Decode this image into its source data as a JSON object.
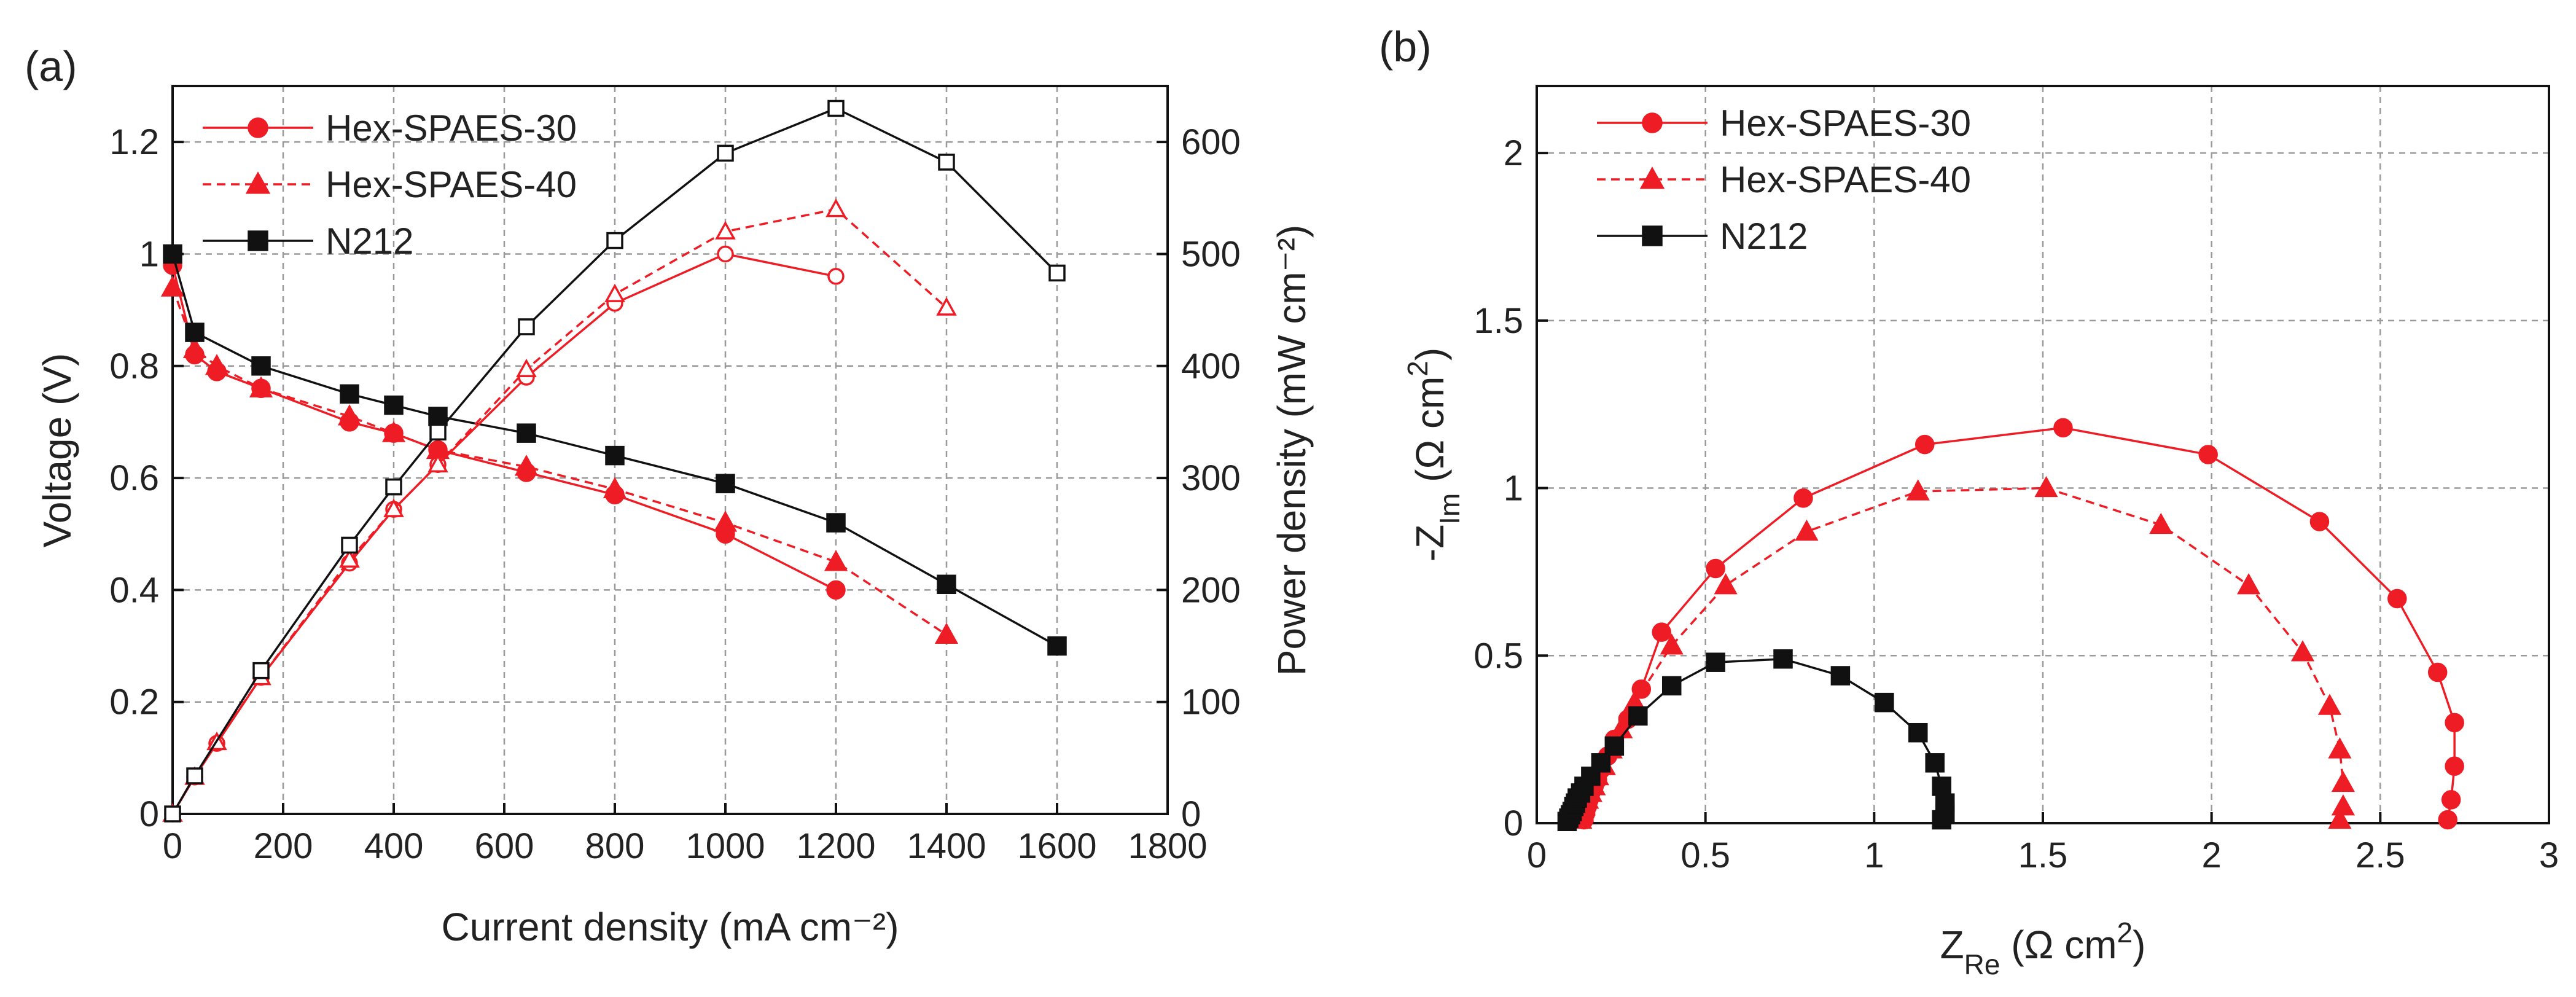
{
  "panel_labels": [
    "(a)",
    "(b)"
  ],
  "colors": {
    "red": "#ee1c25",
    "black": "#111111",
    "grid": "#9a9a9a"
  },
  "chart_data": [
    {
      "type": "line",
      "panel": "(a)",
      "xlabel": "Current density (mA cm⁻²)",
      "ylabel": "Voltage (V)",
      "y2label": "Power density (mW cm⁻²)",
      "xlim": [
        0,
        1800
      ],
      "ylim": [
        0,
        1.3
      ],
      "y2lim": [
        0,
        650
      ],
      "x_ticks": [
        0,
        200,
        400,
        600,
        800,
        1000,
        1200,
        1400,
        1600,
        1800
      ],
      "x_tick_labels": [
        "0",
        "200",
        "400",
        "600",
        "800",
        "1000",
        "1200",
        "1400",
        "1600",
        "1800"
      ],
      "y_ticks": [
        0,
        0.2,
        0.4,
        0.6,
        0.8,
        1.0,
        1.2
      ],
      "y_tick_labels": [
        "0",
        "0.2",
        "0.4",
        "0.6",
        "0.8",
        "1",
        "1.2"
      ],
      "y2_ticks": [
        0,
        100,
        200,
        300,
        400,
        500,
        600
      ],
      "y2_tick_labels": [
        "0",
        "100",
        "200",
        "300",
        "400",
        "500",
        "600"
      ],
      "grid": true,
      "legend_position": "top-left",
      "legend": [
        "Hex-SPAES-30",
        "Hex-SPAES-40",
        "N212"
      ],
      "series": [
        {
          "name": "Hex-SPAES-30",
          "axis": "voltage",
          "marker": "circle",
          "filled": true,
          "dash": false,
          "color": "red",
          "x": [
            0,
            40,
            80,
            160,
            320,
            400,
            480,
            640,
            800,
            1000,
            1200
          ],
          "y": [
            0.98,
            0.82,
            0.79,
            0.76,
            0.7,
            0.68,
            0.65,
            0.61,
            0.57,
            0.5,
            0.4
          ]
        },
        {
          "name": "Hex-SPAES-40",
          "axis": "voltage",
          "marker": "triangle",
          "filled": true,
          "dash": true,
          "color": "red",
          "x": [
            0,
            40,
            80,
            160,
            320,
            400,
            480,
            640,
            800,
            1000,
            1200,
            1400
          ],
          "y": [
            0.94,
            0.83,
            0.8,
            0.76,
            0.71,
            0.68,
            0.65,
            0.62,
            0.58,
            0.52,
            0.45,
            0.32
          ]
        },
        {
          "name": "N212",
          "axis": "voltage",
          "marker": "square",
          "filled": true,
          "dash": false,
          "color": "black",
          "x": [
            0,
            40,
            160,
            320,
            400,
            480,
            640,
            800,
            1000,
            1200,
            1400,
            1600
          ],
          "y": [
            1.0,
            0.86,
            0.8,
            0.75,
            0.73,
            0.71,
            0.68,
            0.64,
            0.59,
            0.52,
            0.41,
            0.3
          ]
        },
        {
          "name": "Hex-SPAES-30 power",
          "axis": "power",
          "marker": "circle",
          "filled": false,
          "dash": false,
          "color": "red",
          "x": [
            0,
            40,
            80,
            160,
            320,
            400,
            480,
            640,
            800,
            1000,
            1200
          ],
          "y": [
            0,
            33,
            63,
            122,
            224,
            272,
            312,
            390,
            456,
            500,
            480
          ]
        },
        {
          "name": "Hex-SPAES-40 power",
          "axis": "power",
          "marker": "triangle",
          "filled": false,
          "dash": true,
          "color": "red",
          "x": [
            0,
            40,
            80,
            160,
            320,
            400,
            480,
            640,
            800,
            1000,
            1200,
            1400
          ],
          "y": [
            0,
            33,
            64,
            122,
            227,
            272,
            312,
            397,
            464,
            520,
            540,
            452
          ]
        },
        {
          "name": "N212 power",
          "axis": "power",
          "marker": "square",
          "filled": false,
          "dash": false,
          "color": "black",
          "x": [
            0,
            40,
            160,
            320,
            400,
            480,
            640,
            800,
            1000,
            1200,
            1400,
            1600
          ],
          "y": [
            0,
            34,
            128,
            240,
            292,
            341,
            435,
            512,
            590,
            630,
            582,
            483
          ]
        }
      ]
    },
    {
      "type": "scatter",
      "panel": "(b)",
      "xlabel_main": "Z",
      "xlabel_sub": "Re",
      "xlabel_unit": " (Ω cm",
      "xlabel_sup": "2",
      "xlabel_close": ")",
      "ylabel_main": "-Z",
      "ylabel_sub": "Im",
      "ylabel_unit": " (Ω cm",
      "ylabel_sup": "2",
      "ylabel_close": ")",
      "xlim": [
        0,
        3
      ],
      "ylim": [
        0,
        2.2
      ],
      "x_ticks": [
        0,
        0.5,
        1,
        1.5,
        2,
        2.5,
        3
      ],
      "x_tick_labels": [
        "0",
        "0.5",
        "1",
        "1.5",
        "2",
        "2.5",
        "3"
      ],
      "y_ticks": [
        0,
        0.5,
        1,
        1.5,
        2
      ],
      "y_tick_labels": [
        "0",
        "0.5",
        "1",
        "1.5",
        "2"
      ],
      "grid": true,
      "legend_position": "top-left",
      "legend": [
        "Hex-SPAES-30",
        "Hex-SPAES-40",
        "N212"
      ],
      "series": [
        {
          "name": "Hex-SPAES-30",
          "marker": "circle",
          "dash": false,
          "color": "red",
          "x": [
            0.14,
            0.145,
            0.15,
            0.155,
            0.16,
            0.17,
            0.18,
            0.19,
            0.21,
            0.23,
            0.27,
            0.31,
            0.37,
            0.53,
            0.79,
            1.15,
            1.56,
            1.99,
            2.32,
            2.55,
            2.67,
            2.72,
            2.72,
            2.71,
            2.7
          ],
          "y": [
            0.01,
            0.03,
            0.05,
            0.07,
            0.09,
            0.11,
            0.13,
            0.16,
            0.2,
            0.25,
            0.31,
            0.4,
            0.57,
            0.76,
            0.97,
            1.13,
            1.18,
            1.1,
            0.9,
            0.67,
            0.45,
            0.3,
            0.17,
            0.07,
            0.01
          ]
        },
        {
          "name": "Hex-SPAES-40",
          "marker": "triangle",
          "dash": true,
          "color": "red",
          "x": [
            0.13,
            0.135,
            0.14,
            0.15,
            0.16,
            0.17,
            0.18,
            0.2,
            0.22,
            0.25,
            0.29,
            0.4,
            0.56,
            0.8,
            1.13,
            1.51,
            1.85,
            2.11,
            2.27,
            2.35,
            2.38,
            2.39,
            2.39,
            2.38
          ],
          "y": [
            0.01,
            0.03,
            0.05,
            0.07,
            0.09,
            0.11,
            0.14,
            0.17,
            0.22,
            0.28,
            0.36,
            0.53,
            0.71,
            0.87,
            0.99,
            1.0,
            0.89,
            0.71,
            0.51,
            0.35,
            0.22,
            0.12,
            0.05,
            0.01
          ]
        },
        {
          "name": "N212",
          "marker": "square",
          "dash": false,
          "color": "black",
          "x": [
            0.09,
            0.095,
            0.1,
            0.105,
            0.11,
            0.115,
            0.12,
            0.13,
            0.14,
            0.16,
            0.19,
            0.23,
            0.3,
            0.4,
            0.53,
            0.73,
            0.9,
            1.03,
            1.13,
            1.18,
            1.2,
            1.21,
            1.21,
            1.2
          ],
          "y": [
            0.005,
            0.015,
            0.025,
            0.035,
            0.05,
            0.06,
            0.075,
            0.09,
            0.11,
            0.14,
            0.18,
            0.23,
            0.32,
            0.41,
            0.48,
            0.49,
            0.44,
            0.36,
            0.27,
            0.18,
            0.11,
            0.06,
            0.03,
            0.01
          ]
        }
      ]
    }
  ]
}
